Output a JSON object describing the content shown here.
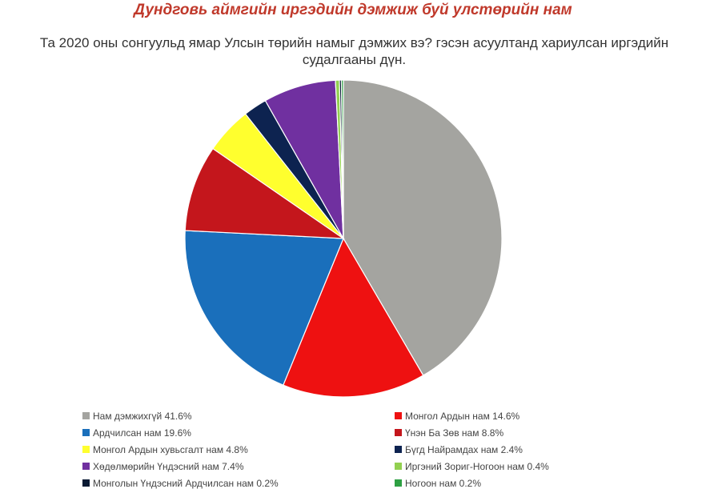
{
  "title": "Дундговь аймгийн иргэдийн дэмжиж буй улстөрийн нам",
  "subtitle": "Та 2020 оны сонгуульд ямар Улсын төрийн намыг дэмжих вэ? гэсэн асуултанд хариулсан иргэдийн судалгааны дүн.",
  "chart_data": {
    "type": "pie",
    "title": "Дундговь аймгийн иргэдийн дэмжиж буй улстөрийн нам",
    "subtitle": "Та 2020 оны сонгуульд ямар Улсын төрийн намыг дэмжих вэ? гэсэн асуултанд хариулсан иргэдийн судалгааны дүн.",
    "legend_position": "bottom",
    "slices": [
      {
        "label": "Нам дэмжихгүй 41.6%",
        "value": 41.6,
        "color": "#a4a4a0"
      },
      {
        "label": "Монгол Ардын нам 14.6%",
        "value": 14.6,
        "color": "#ee1111"
      },
      {
        "label": "Ардчилсан нам 19.6%",
        "value": 19.6,
        "color": "#1a6fbb"
      },
      {
        "label": "Үнэн Ба Зөв нам 8.8%",
        "value": 8.8,
        "color": "#c4161c"
      },
      {
        "label": "Монгол Ардын хувьсгалт нам 4.8%",
        "value": 4.8,
        "color": "#ffff2e"
      },
      {
        "label": "Бүгд Найрамдах нам 2.4%",
        "value": 2.4,
        "color": "#0d2350"
      },
      {
        "label": "Хөдөлмөрийн Үндэсний нам 7.4%",
        "value": 7.4,
        "color": "#7030a0"
      },
      {
        "label": "Иргэний Зориг-Ногоон нам 0.4%",
        "value": 0.4,
        "color": "#92d050"
      },
      {
        "label": "Монголын Үндэсний Ардчилсан нам 0.2%",
        "value": 0.2,
        "color": "#0a1a33"
      },
      {
        "label": "Ногоон нам 0.2%",
        "value": 0.2,
        "color": "#2ea043"
      }
    ]
  }
}
